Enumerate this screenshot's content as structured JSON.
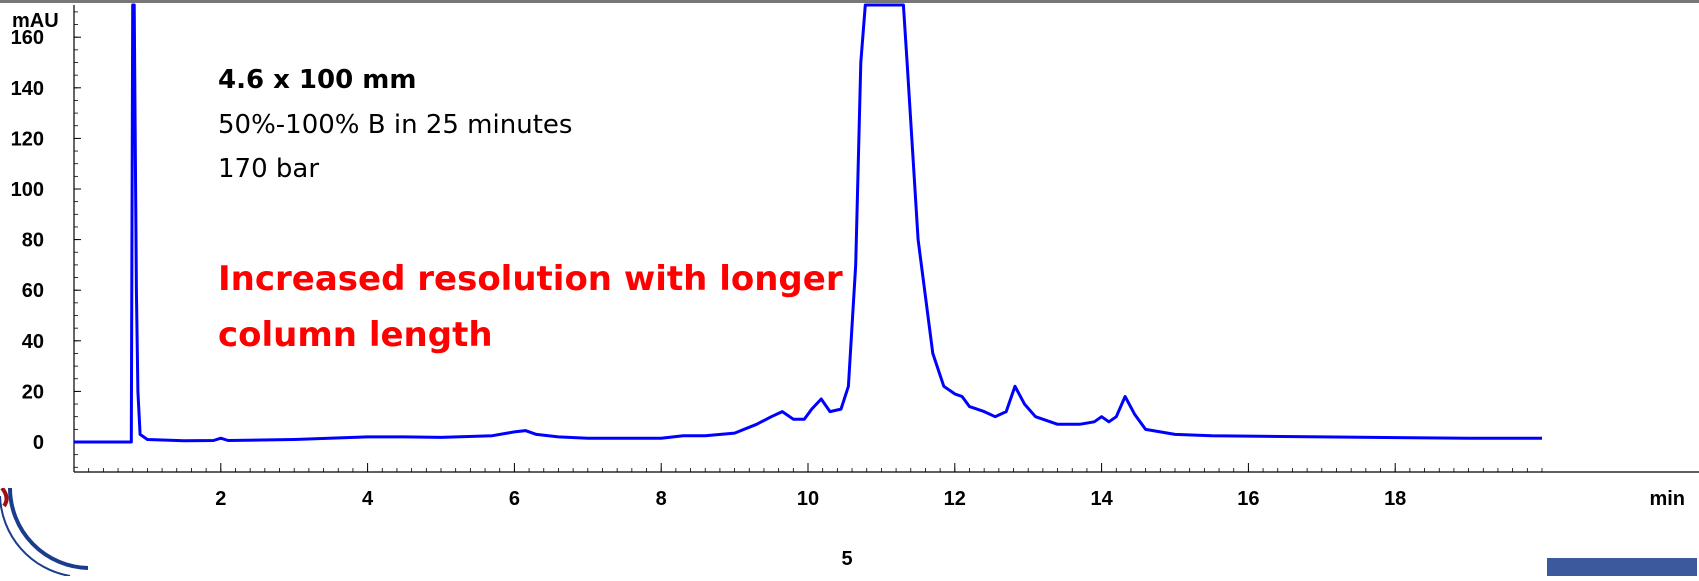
{
  "slide": {
    "page_number": "5"
  },
  "chart_data": {
    "type": "line",
    "title": "",
    "xlabel": "min",
    "ylabel": "mAU",
    "x_ticks": [
      "2",
      "4",
      "6",
      "8",
      "10",
      "12",
      "14",
      "16",
      "18"
    ],
    "y_ticks": [
      "0",
      "20",
      "40",
      "60",
      "80",
      "100",
      "120",
      "140",
      "160"
    ],
    "xlim": [
      0,
      20
    ],
    "ylim": [
      -10,
      175
    ],
    "grid": false,
    "annotations": [
      {
        "text": "4.6 x 100 mm",
        "style": "bold"
      },
      {
        "text": "50%-100% B in 25 minutes",
        "style": "normal"
      },
      {
        "text": "170 bar",
        "style": "normal"
      },
      {
        "text": "Increased resolution with longer column length",
        "style": "bold-red"
      }
    ],
    "series": [
      {
        "color": "#0000ff",
        "x": [
          0,
          0.5,
          0.78,
          0.8,
          0.82,
          0.85,
          0.87,
          0.9,
          1.0,
          1.5,
          1.9,
          2.0,
          2.1,
          3.0,
          4.0,
          4.5,
          5.0,
          5.7,
          6.0,
          6.15,
          6.3,
          6.6,
          7.0,
          8.0,
          8.3,
          8.6,
          9.0,
          9.3,
          9.5,
          9.65,
          9.8,
          9.95,
          10.05,
          10.18,
          10.3,
          10.45,
          10.55,
          10.65,
          10.72,
          10.78,
          11.3,
          11.35,
          11.5,
          11.7,
          11.85,
          12.0,
          12.1,
          12.2,
          12.4,
          12.55,
          12.7,
          12.82,
          12.95,
          13.1,
          13.4,
          13.7,
          13.9,
          14.0,
          14.1,
          14.2,
          14.32,
          14.45,
          14.6,
          15.0,
          15.5,
          17.0,
          19.0,
          20.0
        ],
        "y": [
          0,
          0,
          0,
          180,
          180,
          60,
          20,
          3,
          1,
          0.5,
          0.6,
          1.5,
          0.6,
          1,
          2,
          2,
          1.8,
          2.5,
          4,
          4.5,
          3,
          2,
          1.5,
          1.5,
          2.5,
          2.5,
          3.5,
          7,
          10,
          12,
          9,
          9,
          13,
          17,
          12,
          13,
          22,
          70,
          150,
          180,
          180,
          150,
          80,
          35,
          22,
          19,
          18,
          14,
          12,
          10,
          12,
          22,
          15,
          10,
          7,
          7,
          8,
          10,
          8,
          10,
          18,
          11,
          5,
          3,
          2.5,
          2,
          1.5,
          1.5
        ]
      }
    ]
  }
}
